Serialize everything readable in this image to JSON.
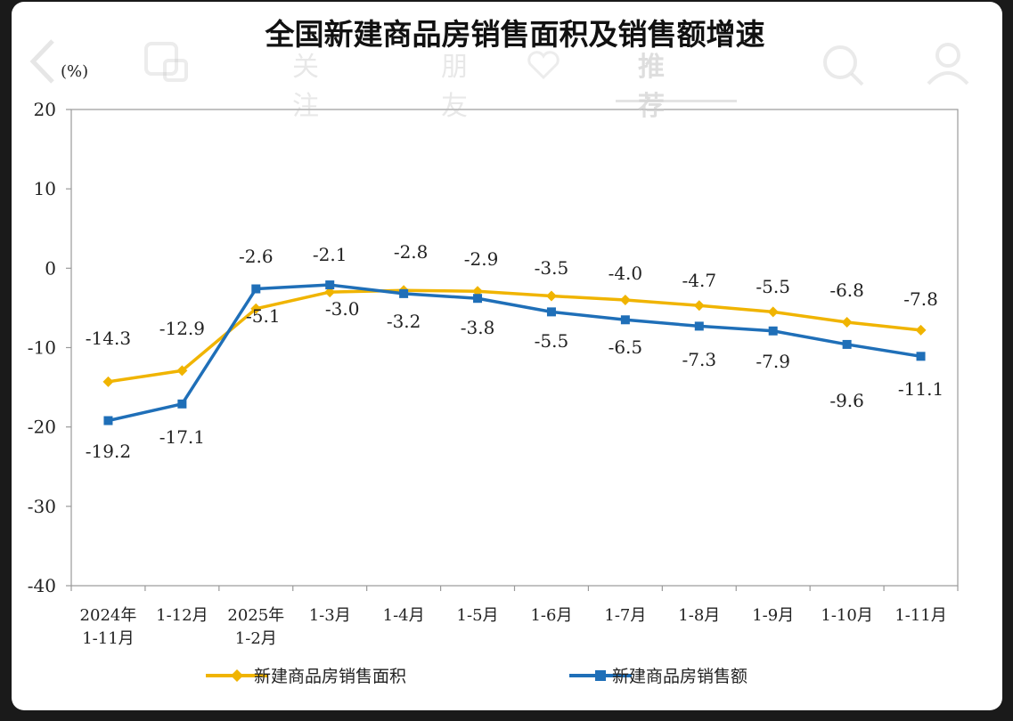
{
  "app_overlay": {
    "tabs": [
      {
        "label": "关注",
        "active": false
      },
      {
        "label": "朋友",
        "active": false
      },
      {
        "label": "推荐",
        "active": true
      }
    ],
    "icons": [
      "back-icon",
      "screen-cast-icon",
      "heart-icon",
      "search-icon",
      "profile-icon"
    ]
  },
  "chart_data": {
    "type": "line",
    "title": "全国新建商品房销售面积及销售额增速",
    "ylabel": "(%)",
    "ylim": [
      -40,
      20
    ],
    "yticks": [
      "20",
      "10",
      "0",
      "-10",
      "-20",
      "-30",
      "-40"
    ],
    "yticks_values": [
      20,
      10,
      0,
      -10,
      -20,
      -30,
      -40
    ],
    "categories": [
      [
        "2024年",
        "1-11月"
      ],
      [
        "1-12月"
      ],
      [
        "2025年",
        "1-2月"
      ],
      [
        "1-3月"
      ],
      [
        "1-4月"
      ],
      [
        "1-5月"
      ],
      [
        "1-6月"
      ],
      [
        "1-7月"
      ],
      [
        "1-8月"
      ],
      [
        "1-9月"
      ],
      [
        "1-10月"
      ],
      [
        "1-11月"
      ]
    ],
    "series": [
      {
        "name": "新建商品房销售面积",
        "color": "#f0b400",
        "marker": "diamond",
        "values": [
          -14.3,
          -12.9,
          -5.1,
          -3.0,
          -2.8,
          -2.9,
          -3.5,
          -4.0,
          -4.7,
          -5.5,
          -6.8,
          -7.8
        ],
        "labels": [
          "-14.3",
          "-12.9",
          "-5.1",
          "-3.0",
          "-2.8",
          "-2.9",
          "-3.5",
          "-4.0",
          "-4.7",
          "-5.5",
          "-6.8",
          "-7.8"
        ]
      },
      {
        "name": "新建商品房销售额",
        "color": "#1f6fb8",
        "marker": "square",
        "values": [
          -19.2,
          -17.1,
          -2.6,
          -2.1,
          -3.2,
          -3.8,
          -5.5,
          -6.5,
          -7.3,
          -7.9,
          -9.6,
          -11.1
        ],
        "labels": [
          "-19.2",
          "-17.1",
          "-2.6",
          "-2.1",
          "-3.2",
          "-3.8",
          "-5.5",
          "-6.5",
          "-7.3",
          "-7.9",
          "-9.6",
          "-11.1"
        ]
      }
    ],
    "grid": false,
    "legend": "bottom"
  }
}
